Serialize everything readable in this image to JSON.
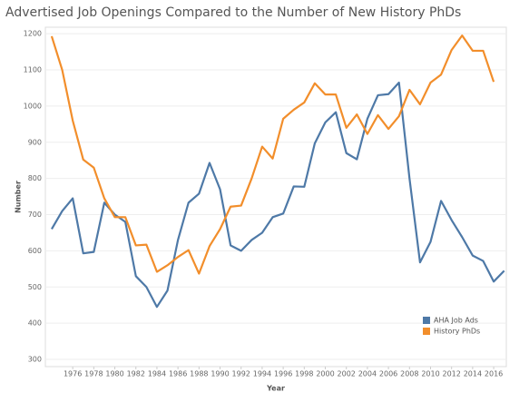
{
  "chart_data": {
    "type": "line",
    "title": "Advertised Job Openings Compared to the Number of New History PhDs",
    "x_label": "Year",
    "y_label": "Number",
    "x": [
      1974,
      1975,
      1976,
      1977,
      1978,
      1979,
      1980,
      1981,
      1982,
      1983,
      1984,
      1985,
      1986,
      1987,
      1988,
      1989,
      1990,
      1991,
      1992,
      1993,
      1994,
      1995,
      1996,
      1997,
      1998,
      1999,
      2000,
      2001,
      2002,
      2003,
      2004,
      2005,
      2006,
      2007,
      2008,
      2009,
      2010,
      2011,
      2012,
      2013,
      2014,
      2015,
      2016,
      2017
    ],
    "series": [
      {
        "name": "AHA Job Ads",
        "color": "#4e79a7",
        "values": [
          660,
          710,
          745,
          593,
          597,
          733,
          700,
          680,
          530,
          500,
          445,
          490,
          630,
          733,
          758,
          843,
          770,
          615,
          600,
          630,
          650,
          693,
          703,
          778,
          777,
          897,
          955,
          983,
          870,
          853,
          965,
          1030,
          1033,
          1065,
          800,
          568,
          625,
          738,
          685,
          638,
          587,
          572,
          515,
          545
        ]
      },
      {
        "name": "History PhDs",
        "color": "#f28e2b",
        "values": [
          1193,
          1100,
          960,
          852,
          830,
          745,
          693,
          693,
          615,
          617,
          542,
          560,
          583,
          602,
          537,
          613,
          660,
          722,
          725,
          800,
          888,
          855,
          965,
          990,
          1010,
          1063,
          1032,
          1032,
          940,
          977,
          923,
          975,
          937,
          972,
          1045,
          1005,
          1065,
          1087,
          1155,
          1195,
          1153,
          1153,
          1067,
          null
        ]
      }
    ],
    "xlim": [
      1973.4,
      2017.2
    ],
    "xticks": [
      1976,
      1978,
      1980,
      1982,
      1984,
      1986,
      1988,
      1990,
      1992,
      1994,
      1996,
      1998,
      2000,
      2002,
      2004,
      2006,
      2008,
      2010,
      2012,
      2014,
      2016
    ],
    "ylim": [
      280,
      1218
    ],
    "yticks": [
      300,
      400,
      500,
      600,
      700,
      800,
      900,
      1000,
      1100,
      1200
    ],
    "grid": true,
    "legend": "lower right"
  }
}
